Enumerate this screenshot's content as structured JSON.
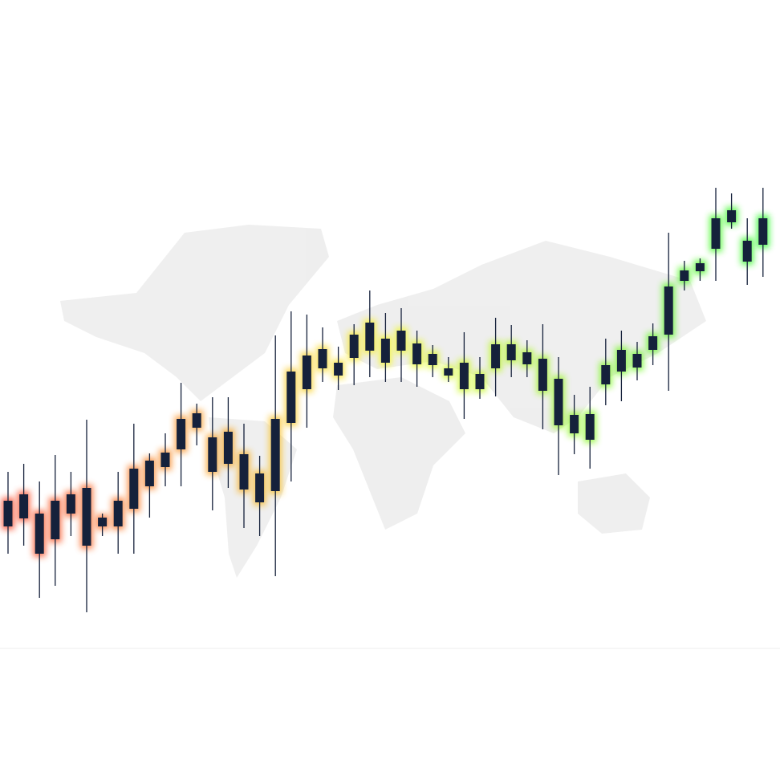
{
  "chart_data": {
    "type": "candlestick",
    "open": [
      316,
      326,
      282,
      300,
      332,
      292,
      316,
      316,
      338,
      366,
      390,
      412,
      439,
      384,
      394,
      362,
      346,
      360,
      445,
      487,
      513,
      504,
      526,
      535,
      520,
      535,
      518,
      517,
      504,
      487,
      487,
      513,
      523,
      518,
      485,
      442,
      432,
      424,
      493,
      509,
      514,
      536,
      555,
      622,
      634,
      662,
      695,
      646,
      667
    ],
    "high": [
      384,
      394,
      372,
      405,
      384,
      449,
      332,
      384,
      444,
      407,
      432,
      495,
      469,
      477,
      477,
      444,
      404,
      554,
      584,
      580,
      564,
      540,
      568,
      610,
      582,
      588,
      560,
      542,
      527,
      558,
      527,
      576,
      567,
      548,
      568,
      527,
      480,
      490,
      550,
      560,
      546,
      569,
      682,
      647,
      650,
      738,
      731,
      700,
      738
    ],
    "low": [
      282,
      292,
      227,
      242,
      304,
      209,
      304,
      282,
      282,
      327,
      366,
      366,
      417,
      336,
      364,
      314,
      304,
      254,
      372,
      439,
      496,
      486,
      492,
      502,
      496,
      496,
      490,
      502,
      496,
      450,
      475,
      478,
      502,
      502,
      437,
      380,
      406,
      388,
      467,
      472,
      498,
      517,
      485,
      610,
      622,
      622,
      687,
      617,
      627
    ],
    "close": [
      348,
      356,
      332,
      348,
      356,
      364,
      327,
      348,
      388,
      398,
      408,
      450,
      457,
      427,
      434,
      406,
      382,
      450,
      509,
      529,
      537,
      520,
      555,
      570,
      550,
      560,
      544,
      531,
      513,
      520,
      506,
      543,
      543,
      533,
      525,
      500,
      455,
      456,
      517,
      536,
      531,
      553,
      615,
      635,
      644,
      700,
      710,
      672,
      700
    ],
    "color": "#15213b",
    "ylim": [
      0,
      972
    ]
  }
}
